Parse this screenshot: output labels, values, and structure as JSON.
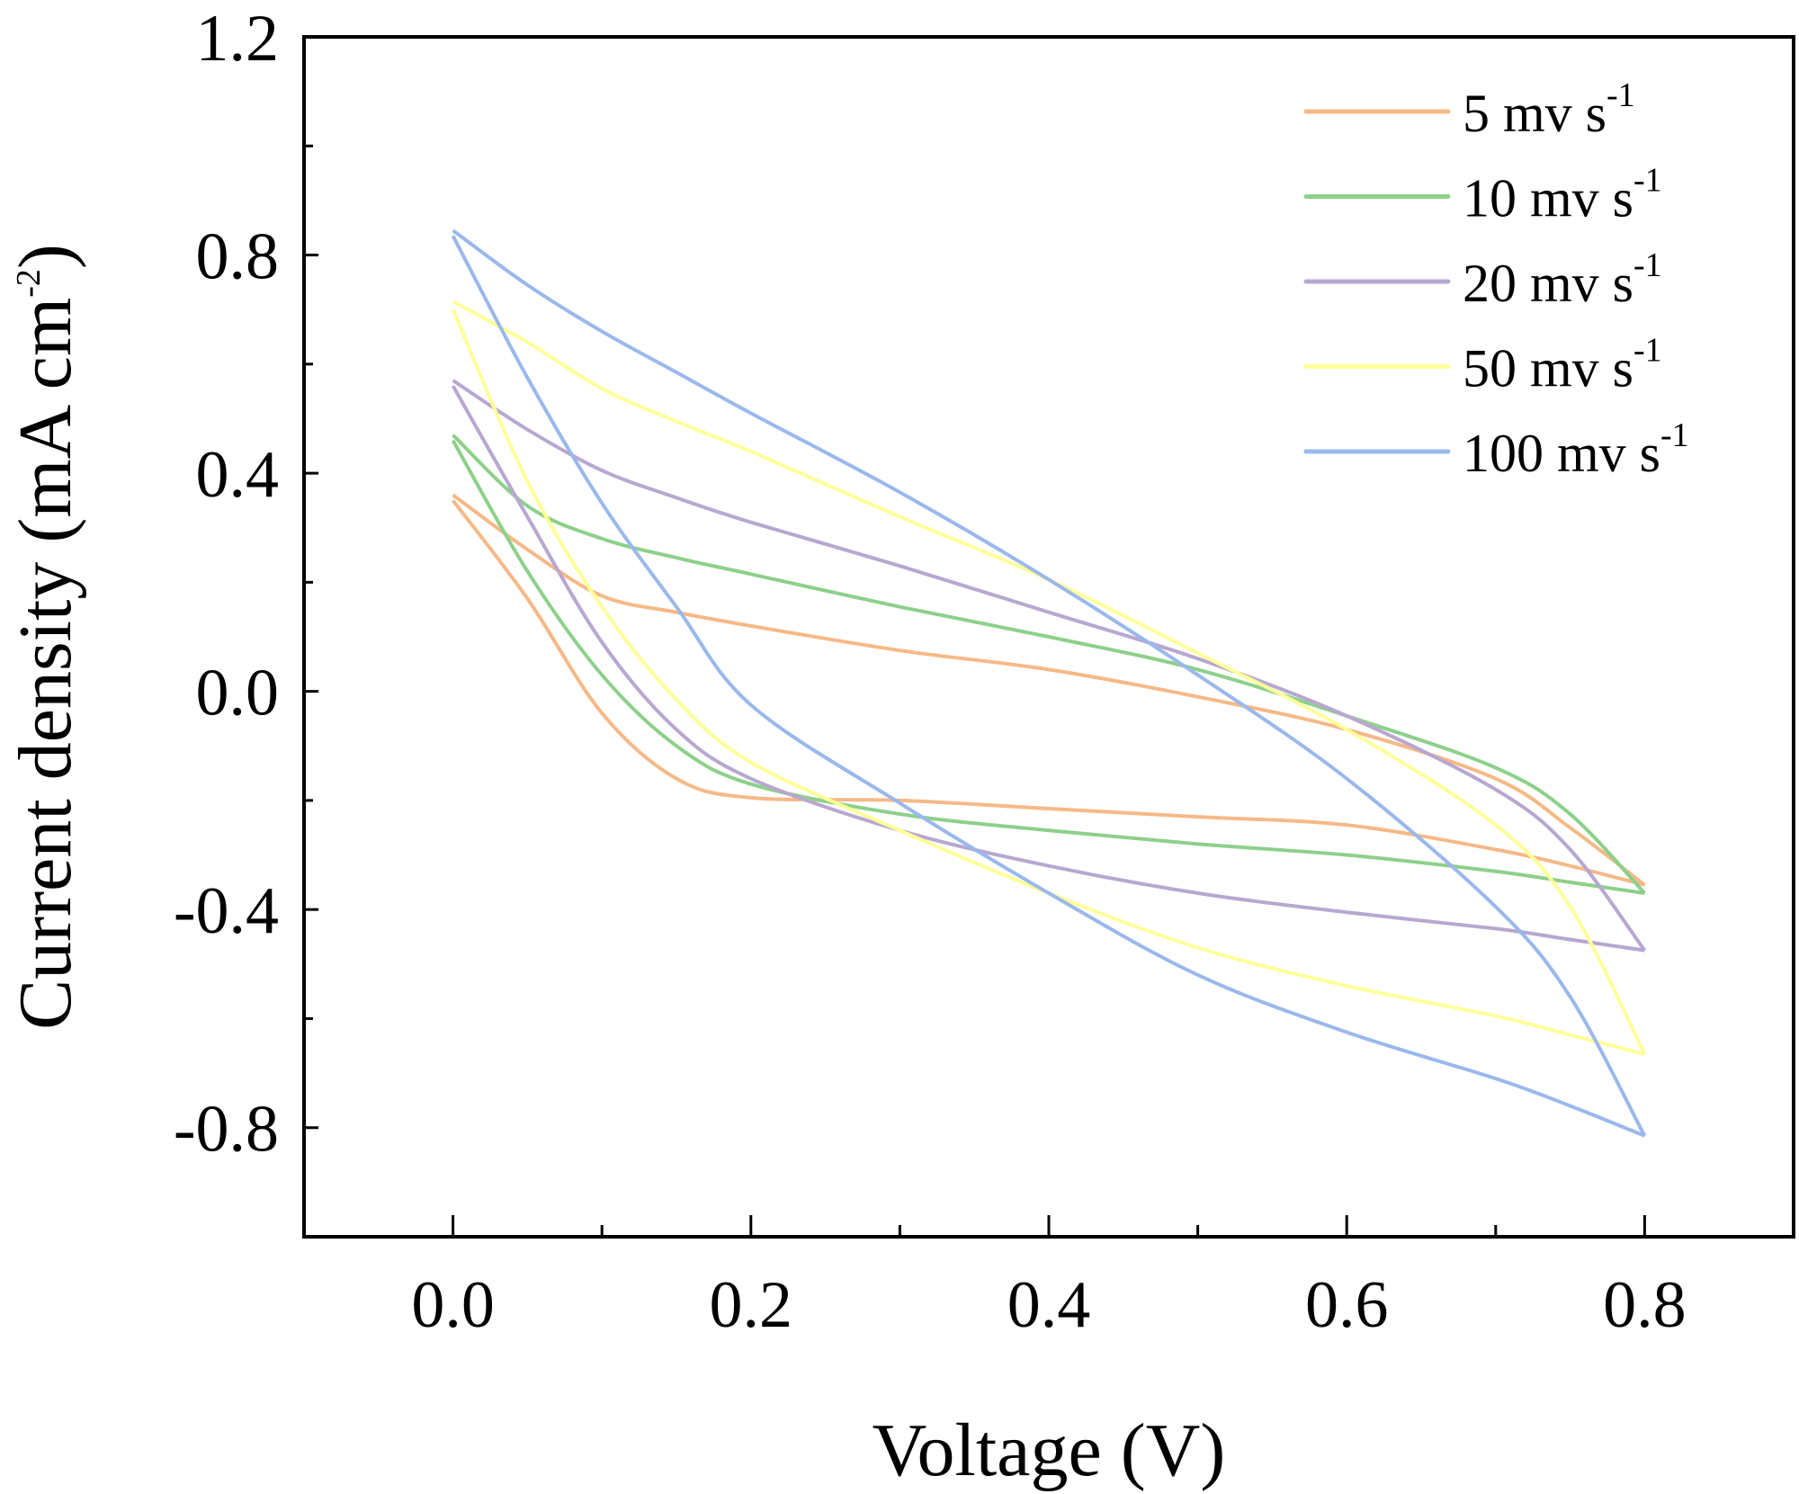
{
  "chart_data": {
    "type": "line",
    "title": "",
    "xlabel": "Voltage (V)",
    "ylabel": "Current density (mA cm",
    "ylabel_sup": "-2",
    "ylabel_tail": ")",
    "xlim": [
      -0.1,
      0.9
    ],
    "ylim": [
      -1.0,
      1.2
    ],
    "xticks": [
      "0.0",
      "0.2",
      "0.4",
      "0.6",
      "0.8"
    ],
    "xtick_values": [
      0.0,
      0.2,
      0.4,
      0.6,
      0.8
    ],
    "yticks": [
      "1.2",
      "0.8",
      "0.4",
      "0.0",
      "-0.4",
      "-0.8"
    ],
    "ytick_values": [
      1.2,
      0.8,
      0.4,
      0.0,
      -0.4,
      -0.8
    ],
    "grid": false,
    "legend_placement": "top-right",
    "x": [
      0,
      0.05,
      0.1,
      0.15,
      0.2,
      0.3,
      0.4,
      0.5,
      0.6,
      0.7,
      0.75,
      0.8
    ],
    "series": [
      {
        "name": "5 mv s",
        "sup": "-1",
        "color": "#F5B987",
        "upper": [
          0.36,
          0.26,
          0.175,
          0.145,
          0.12,
          0.075,
          0.04,
          -0.01,
          -0.07,
          -0.16,
          -0.25,
          -0.355
        ],
        "lower": [
          0.35,
          0.17,
          -0.04,
          -0.16,
          -0.195,
          -0.2,
          -0.215,
          -0.23,
          -0.245,
          -0.29,
          -0.32,
          -0.355
        ]
      },
      {
        "name": "10 mv s",
        "sup": "-1",
        "color": "#8DD08A",
        "upper": [
          0.47,
          0.34,
          0.28,
          0.245,
          0.215,
          0.155,
          0.1,
          0.04,
          -0.045,
          -0.14,
          -0.225,
          -0.37
        ],
        "lower": [
          0.46,
          0.22,
          0.03,
          -0.1,
          -0.17,
          -0.225,
          -0.255,
          -0.28,
          -0.3,
          -0.33,
          -0.35,
          -0.37
        ]
      },
      {
        "name": "20 mv s",
        "sup": "-1",
        "color": "#B8A7D0",
        "upper": [
          0.57,
          0.48,
          0.405,
          0.355,
          0.31,
          0.23,
          0.145,
          0.06,
          -0.045,
          -0.18,
          -0.29,
          -0.475
        ],
        "lower": [
          0.56,
          0.32,
          0.09,
          -0.07,
          -0.16,
          -0.255,
          -0.32,
          -0.37,
          -0.405,
          -0.435,
          -0.455,
          -0.475
        ]
      },
      {
        "name": "50 mv s",
        "sup": "-1",
        "color": "#FFFF99",
        "upper": [
          0.715,
          0.64,
          0.555,
          0.495,
          0.44,
          0.32,
          0.205,
          0.07,
          -0.07,
          -0.245,
          -0.395,
          -0.665
        ],
        "lower": [
          0.7,
          0.385,
          0.155,
          -0.015,
          -0.13,
          -0.255,
          -0.37,
          -0.47,
          -0.54,
          -0.595,
          -0.63,
          -0.665
        ]
      },
      {
        "name": "100 mv s",
        "sup": "-1",
        "color": "#9AB8EC",
        "upper": [
          0.845,
          0.745,
          0.66,
          0.585,
          0.51,
          0.365,
          0.205,
          0.03,
          -0.16,
          -0.395,
          -0.56,
          -0.815
        ],
        "lower": [
          0.835,
          0.575,
          0.345,
          0.155,
          -0.025,
          -0.205,
          -0.37,
          -0.52,
          -0.625,
          -0.71,
          -0.76,
          -0.815
        ]
      }
    ]
  }
}
